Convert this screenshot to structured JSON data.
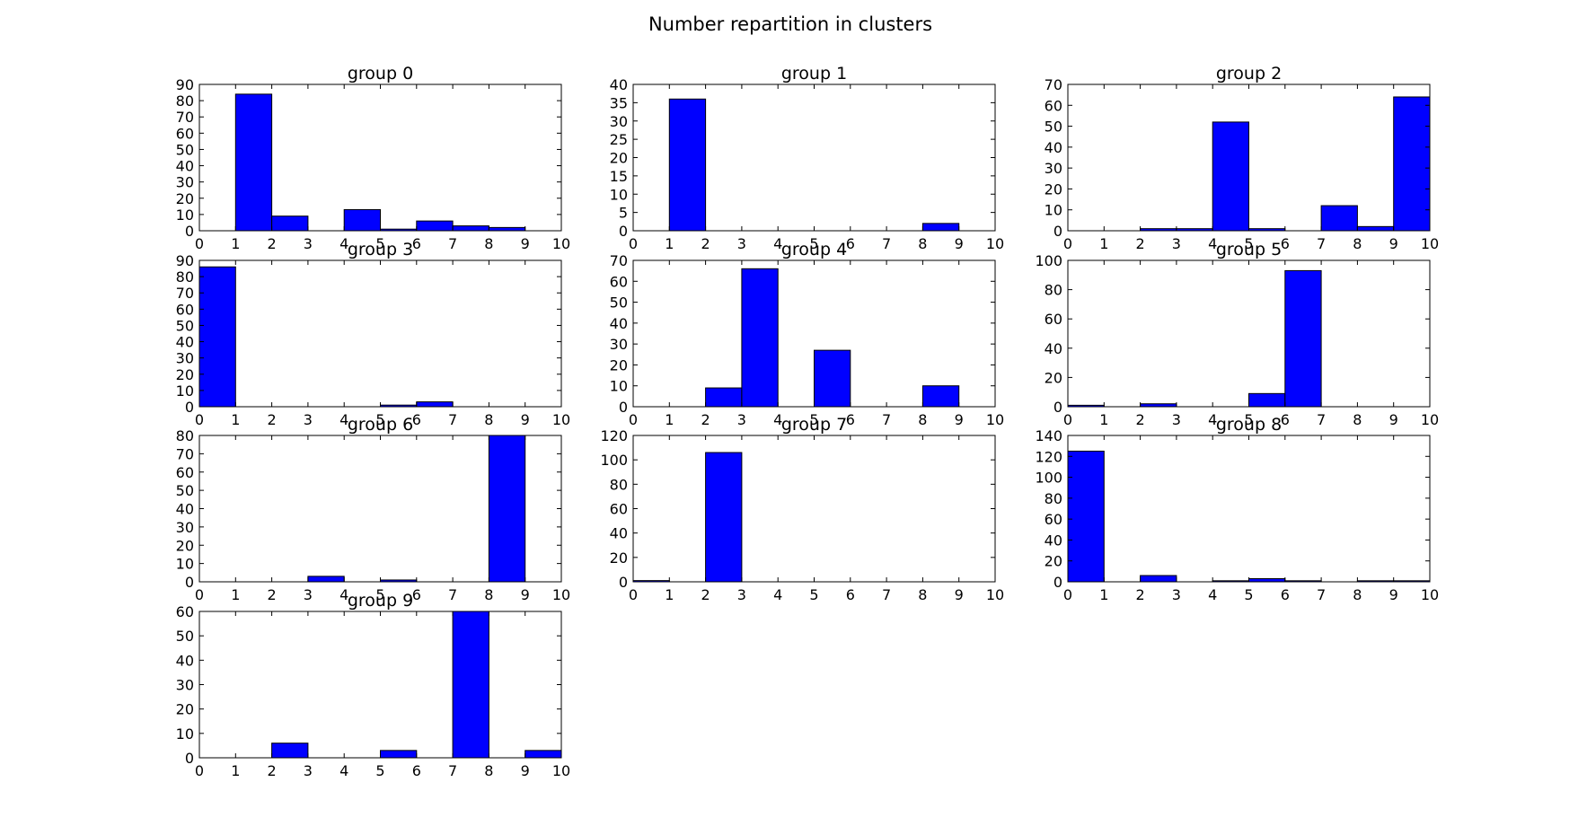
{
  "chart_data": {
    "type": "bar",
    "title": "Number repartition in clusters",
    "bin_edges": [
      0,
      1,
      2,
      3,
      4,
      5,
      6,
      7,
      8,
      9,
      10
    ],
    "xlim": [
      0,
      10
    ],
    "xticks": [
      0,
      1,
      2,
      3,
      4,
      5,
      6,
      7,
      8,
      9,
      10
    ],
    "bar_color": "#0000ff",
    "subplots": [
      {
        "title": "group 0",
        "values": [
          0,
          84,
          9,
          0,
          13,
          1,
          6,
          3,
          2,
          0
        ],
        "ylim": [
          0,
          90
        ],
        "yticks": [
          0,
          10,
          20,
          30,
          40,
          50,
          60,
          70,
          80,
          90
        ]
      },
      {
        "title": "group 1",
        "values": [
          0,
          36,
          0,
          0,
          0,
          0,
          0,
          0,
          2,
          0
        ],
        "ylim": [
          0,
          40
        ],
        "yticks": [
          0,
          5,
          10,
          15,
          20,
          25,
          30,
          35,
          40
        ]
      },
      {
        "title": "group 2",
        "values": [
          0,
          0,
          1,
          1,
          52,
          1,
          0,
          12,
          2,
          64
        ],
        "ylim": [
          0,
          70
        ],
        "yticks": [
          0,
          10,
          20,
          30,
          40,
          50,
          60,
          70
        ]
      },
      {
        "title": "group 3",
        "values": [
          86,
          0,
          0,
          0,
          0,
          1,
          3,
          0,
          0,
          0
        ],
        "ylim": [
          0,
          90
        ],
        "yticks": [
          0,
          10,
          20,
          30,
          40,
          50,
          60,
          70,
          80,
          90
        ]
      },
      {
        "title": "group 4",
        "values": [
          0,
          0,
          9,
          66,
          0,
          27,
          0,
          0,
          10,
          0
        ],
        "ylim": [
          0,
          70
        ],
        "yticks": [
          0,
          10,
          20,
          30,
          40,
          50,
          60,
          70
        ]
      },
      {
        "title": "group 5",
        "values": [
          1,
          0,
          2,
          0,
          0,
          9,
          93,
          0,
          0,
          0
        ],
        "ylim": [
          0,
          100
        ],
        "yticks": [
          0,
          20,
          40,
          60,
          80,
          100
        ]
      },
      {
        "title": "group 6",
        "values": [
          0,
          0,
          0,
          3,
          0,
          1,
          0,
          0,
          80,
          0
        ],
        "ylim": [
          0,
          80
        ],
        "yticks": [
          0,
          10,
          20,
          30,
          40,
          50,
          60,
          70,
          80
        ]
      },
      {
        "title": "group 7",
        "values": [
          1,
          0,
          106,
          0,
          0,
          0,
          0,
          0,
          0,
          0
        ],
        "ylim": [
          0,
          120
        ],
        "yticks": [
          0,
          20,
          40,
          60,
          80,
          100,
          120
        ]
      },
      {
        "title": "group 8",
        "values": [
          125,
          0,
          6,
          0,
          1,
          3,
          1,
          0,
          1,
          1
        ],
        "ylim": [
          0,
          140
        ],
        "yticks": [
          0,
          20,
          40,
          60,
          80,
          100,
          120,
          140
        ]
      },
      {
        "title": "group 9",
        "values": [
          0,
          0,
          6,
          0,
          0,
          3,
          0,
          60,
          0,
          3
        ],
        "ylim": [
          0,
          60
        ],
        "yticks": [
          0,
          10,
          20,
          30,
          40,
          50,
          60
        ]
      }
    ]
  }
}
